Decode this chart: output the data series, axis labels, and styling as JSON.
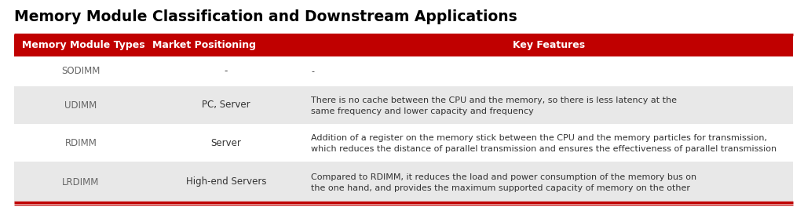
{
  "title": "Memory Module Classification and Downstream Applications",
  "header": [
    "Memory Module Types",
    "Market Positioning",
    "Key Features"
  ],
  "rows": [
    {
      "type": "SODIMM",
      "market": "-",
      "features_line1": "-",
      "features_line2": "",
      "shaded": false
    },
    {
      "type": "UDIMM",
      "market": "PC, Server",
      "features_line1": "There is no cache between the CPU and the memory, so there is less latency at the",
      "features_line2": "same frequency and lower capacity and frequency",
      "shaded": true
    },
    {
      "type": "RDIMM",
      "market": "Server",
      "features_line1": "Addition of a register on the memory stick between the CPU and the memory particles for transmission,",
      "features_line2": "which reduces the distance of parallel transmission and ensures the effectiveness of parallel transmission",
      "shaded": false
    },
    {
      "type": "LRDIMM",
      "market": "High-end Servers",
      "features_line1": "Compared to RDIMM, it reduces the load and power consumption of the memory bus on",
      "features_line2": "the one hand, and provides the maximum supported capacity of memory on the other",
      "shaded": true
    }
  ],
  "header_bg": "#C00000",
  "header_text_color": "#FFFFFF",
  "shaded_row_bg": "#E8E8E8",
  "white_row_bg": "#FFFFFF",
  "title_color": "#000000",
  "border_color_top": "#C00000",
  "border_color_bottom": "#C00000",
  "background_color": "#FFFFFF",
  "title_fontsize": 13.5,
  "header_fontsize": 9,
  "cell_fontsize": 8.5,
  "feat_fontsize": 8
}
